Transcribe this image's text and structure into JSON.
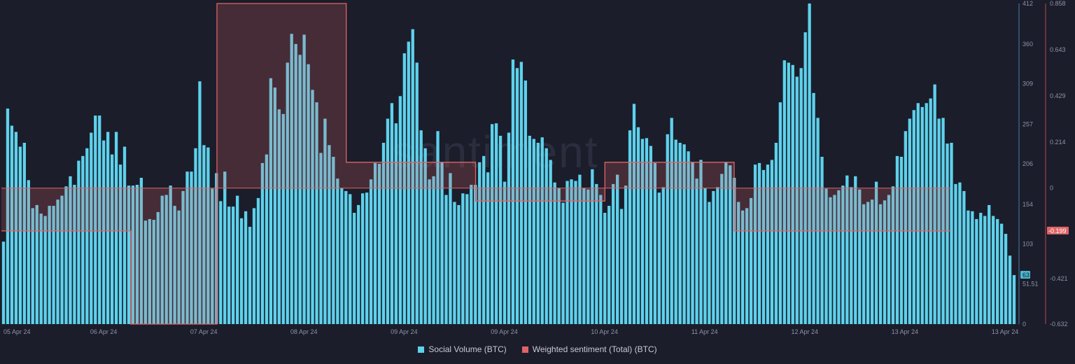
{
  "watermark": "santiment",
  "colors": {
    "background": "#1b1d2b",
    "social_volume": "#5ed2ec",
    "sentiment_line": "#e06466",
    "sentiment_fill": "rgba(224,100,102,0.22)",
    "right_axis_line": "#4a7fa0",
    "far_axis_line": "#b04a4c"
  },
  "legend": {
    "social_volume": "Social Volume (BTC)",
    "sentiment": "Weighted sentiment (Total) (BTC)"
  },
  "chart_data": {
    "type": "bar",
    "title": "",
    "x_labels": [
      "05 Apr 24",
      "06 Apr 24",
      "07 Apr 24",
      "08 Apr 24",
      "09 Apr 24",
      "09 Apr 24",
      "10 Apr 24",
      "11 Apr 24",
      "12 Apr 24",
      "13 Apr 24",
      "13 Apr 24"
    ],
    "grid": false,
    "legend_position": "bottom-center",
    "y_axis_left": {
      "ticks": [
        "412",
        "360",
        "309",
        "257",
        "206",
        "154",
        "103",
        "51.51",
        "0"
      ],
      "range": [
        0,
        412
      ]
    },
    "y_axis_right": {
      "ticks": [
        "0.858",
        "0.643",
        "0.429",
        "0.214",
        "0",
        "-0.421",
        "-0.632"
      ],
      "range": [
        -0.632,
        0.858
      ]
    },
    "last_value_markers": {
      "social_volume": "63",
      "sentiment": "-0.199"
    },
    "series": [
      {
        "name": "Social Volume (BTC)",
        "axis": "left",
        "type": "bar",
        "values": [
          106,
          277,
          255,
          247,
          228,
          233,
          185,
          149,
          153,
          142,
          139,
          152,
          152,
          160,
          165,
          177,
          190,
          179,
          210,
          216,
          226,
          246,
          268,
          268,
          236,
          247,
          218,
          247,
          205,
          228,
          178,
          178,
          179,
          188,
          133,
          135,
          134,
          144,
          165,
          166,
          178,
          152,
          146,
          171,
          196,
          196,
          226,
          312,
          230,
          227,
          174,
          194,
          158,
          196,
          151,
          151,
          165,
          136,
          145,
          125,
          149,
          162,
          207,
          218,
          316,
          304,
          276,
          270,
          336,
          373,
          360,
          346,
          372,
          334,
          301,
          285,
          220,
          264,
          230,
          215,
          187,
          175,
          171,
          167,
          143,
          153,
          168,
          169,
          186,
          207,
          206,
          233,
          264,
          284,
          258,
          293,
          348,
          363,
          379,
          336,
          249,
          226,
          186,
          190,
          248,
          208,
          166,
          194,
          157,
          153,
          168,
          167,
          179,
          179,
          208,
          216,
          195,
          257,
          258,
          242,
          183,
          246,
          340,
          329,
          337,
          313,
          242,
          238,
          233,
          240,
          226,
          211,
          182,
          175,
          156,
          184,
          186,
          184,
          192,
          175,
          173,
          199,
          180,
          166,
          143,
          152,
          180,
          192,
          148,
          178,
          249,
          283,
          253,
          238,
          239,
          229,
          207,
          169,
          176,
          244,
          265,
          237,
          233,
          231,
          222,
          208,
          187,
          211,
          175,
          157,
          171,
          176,
          193,
          208,
          204,
          188,
          157,
          146,
          149,
          162,
          205,
          207,
          198,
          205,
          211,
          233,
          285,
          339,
          336,
          333,
          318,
          329,
          375,
          417,
          297,
          265,
          215,
          174,
          163,
          166,
          172,
          178,
          191,
          176,
          190,
          173,
          154,
          157,
          160,
          183,
          154,
          159,
          166,
          177,
          216,
          215,
          248,
          264,
          275,
          284,
          279,
          284,
          290,
          308,
          264,
          265,
          232,
          233,
          180,
          182,
          171,
          146,
          145,
          135,
          143,
          139,
          153,
          139,
          135,
          129,
          116,
          88,
          63
        ]
      },
      {
        "name": "Weighted sentiment (Total) (BTC)",
        "axis": "right",
        "type": "step-area",
        "values": [
          -0.199,
          -0.199,
          -0.199,
          -0.632,
          -0.632,
          0.858,
          0.858,
          0.858,
          0.12,
          0.12,
          0.12,
          -0.06,
          -0.06,
          -0.06,
          0.12,
          0.12,
          0.12,
          -0.199,
          -0.199,
          -0.199,
          -0.199,
          -0.199
        ]
      }
    ]
  }
}
